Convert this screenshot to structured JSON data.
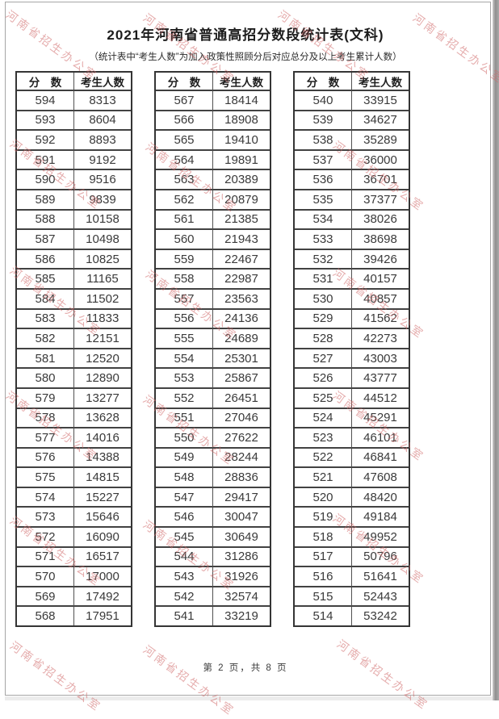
{
  "page": {
    "title": "2021年河南省普通高招分数段统计表(文科)",
    "subtitle": "（统计表中“考生人数”为加入政策性照顾分后对应总分及以上考生累计人数）",
    "footer": "第 2 页，共 8 页"
  },
  "watermark": {
    "text": "河南省招生办公室",
    "color": "#d06a6a"
  },
  "table": {
    "col_headers": [
      "分　数",
      "考生人数"
    ],
    "sections": [
      {
        "name": "left",
        "rows": [
          [
            594,
            8313
          ],
          [
            593,
            8604
          ],
          [
            592,
            8893
          ],
          [
            591,
            9192
          ],
          [
            590,
            9516
          ],
          [
            589,
            9839
          ],
          [
            588,
            10158
          ],
          [
            587,
            10498
          ],
          [
            586,
            10825
          ],
          [
            585,
            11165
          ],
          [
            584,
            11502
          ],
          [
            583,
            11833
          ],
          [
            582,
            12151
          ],
          [
            581,
            12520
          ],
          [
            580,
            12890
          ],
          [
            579,
            13277
          ],
          [
            578,
            13628
          ],
          [
            577,
            14016
          ],
          [
            576,
            14388
          ],
          [
            575,
            14815
          ],
          [
            574,
            15227
          ],
          [
            573,
            15646
          ],
          [
            572,
            16090
          ],
          [
            571,
            16517
          ],
          [
            570,
            17000
          ],
          [
            569,
            17492
          ],
          [
            568,
            17951
          ]
        ]
      },
      {
        "name": "middle",
        "rows": [
          [
            567,
            18414
          ],
          [
            566,
            18908
          ],
          [
            565,
            19410
          ],
          [
            564,
            19891
          ],
          [
            563,
            20389
          ],
          [
            562,
            20879
          ],
          [
            561,
            21385
          ],
          [
            560,
            21943
          ],
          [
            559,
            22467
          ],
          [
            558,
            22987
          ],
          [
            557,
            23563
          ],
          [
            556,
            24136
          ],
          [
            555,
            24689
          ],
          [
            554,
            25301
          ],
          [
            553,
            25867
          ],
          [
            552,
            26451
          ],
          [
            551,
            27046
          ],
          [
            550,
            27622
          ],
          [
            549,
            28244
          ],
          [
            548,
            28836
          ],
          [
            547,
            29417
          ],
          [
            546,
            30047
          ],
          [
            545,
            30649
          ],
          [
            544,
            31286
          ],
          [
            543,
            31926
          ],
          [
            542,
            32574
          ],
          [
            541,
            33219
          ]
        ]
      },
      {
        "name": "right",
        "rows": [
          [
            540,
            33915
          ],
          [
            539,
            34627
          ],
          [
            538,
            35289
          ],
          [
            537,
            36000
          ],
          [
            536,
            36701
          ],
          [
            535,
            37377
          ],
          [
            534,
            38026
          ],
          [
            533,
            38698
          ],
          [
            532,
            39426
          ],
          [
            531,
            40157
          ],
          [
            530,
            40857
          ],
          [
            529,
            41562
          ],
          [
            528,
            42273
          ],
          [
            527,
            43003
          ],
          [
            526,
            43777
          ],
          [
            525,
            44512
          ],
          [
            524,
            45291
          ],
          [
            523,
            46101
          ],
          [
            522,
            46841
          ],
          [
            521,
            47608
          ],
          [
            520,
            48420
          ],
          [
            519,
            49184
          ],
          [
            518,
            49952
          ],
          [
            517,
            50796
          ],
          [
            516,
            51641
          ],
          [
            515,
            52443
          ],
          [
            514,
            53242
          ]
        ]
      }
    ]
  }
}
